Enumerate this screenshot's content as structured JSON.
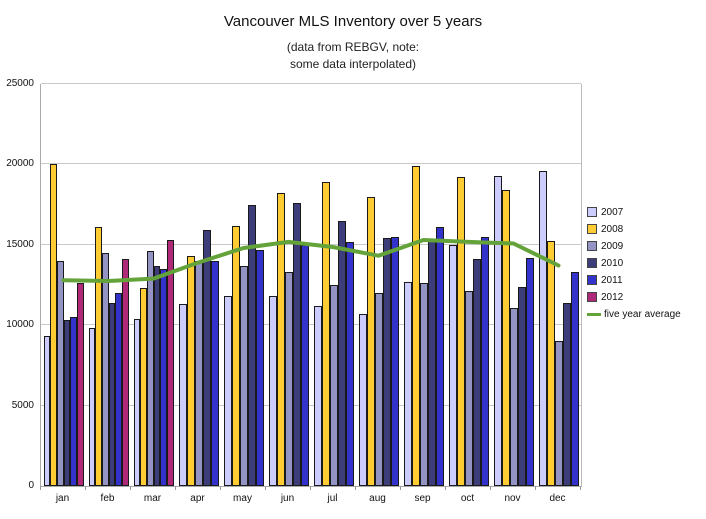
{
  "title": "Vancouver MLS Inventory over 5 years",
  "subtitle_line1": "(data from REBGV, note:",
  "subtitle_line2": "some data interpolated)",
  "colors": {
    "background": "#FFFFFF",
    "gridline": "#C9C9C9",
    "axis": "#AAAAAA",
    "bar_outline": "#1A1A1A",
    "text": "#111111"
  },
  "chart_data": {
    "type": "bar",
    "title": "Vancouver MLS Inventory over 5 years",
    "subtitle": "(data from REBGV, note: some data interpolated)",
    "xlabel": "",
    "ylabel": "",
    "ylim": [
      0,
      25000
    ],
    "yticks": [
      0,
      5000,
      10000,
      15000,
      20000,
      25000
    ],
    "grid": "horizontal",
    "legend_position": "right",
    "categories": [
      "jan",
      "feb",
      "mar",
      "apr",
      "may",
      "jun",
      "jul",
      "aug",
      "sep",
      "oct",
      "nov",
      "dec"
    ],
    "series": [
      {
        "name": "2007",
        "color": "#CCCCFF",
        "values": [
          9300,
          9800,
          10400,
          11300,
          11800,
          11800,
          11200,
          10700,
          12700,
          15000,
          19300,
          19600
        ]
      },
      {
        "name": "2008",
        "color": "#FFCC33",
        "values": [
          20000,
          16100,
          12300,
          14300,
          16200,
          18200,
          18900,
          18000,
          19900,
          19200,
          18400,
          15250
        ]
      },
      {
        "name": "2009",
        "color": "#9494C4",
        "values": [
          14000,
          14500,
          14600,
          14000,
          13700,
          13300,
          12500,
          12000,
          12600,
          12100,
          11100,
          9000
        ]
      },
      {
        "name": "2010",
        "color": "#3D3D7A",
        "values": [
          10300,
          11400,
          13700,
          15900,
          17500,
          17600,
          16500,
          15400,
          15250,
          14100,
          12400,
          11400
        ]
      },
      {
        "name": "2011",
        "color": "#3333CC",
        "values": [
          10500,
          12000,
          13500,
          14000,
          14700,
          15000,
          15200,
          15500,
          16100,
          15500,
          14200,
          13300
        ]
      },
      {
        "name": "2012",
        "color": "#B02878",
        "values": [
          12600,
          14100,
          15300,
          null,
          null,
          null,
          null,
          null,
          null,
          null,
          null,
          null
        ]
      }
    ],
    "line_series": {
      "name": "five year average",
      "color": "#63A33A",
      "values": [
        12800,
        12750,
        12900,
        13900,
        14800,
        15180,
        14860,
        14320,
        15300,
        15180,
        15080,
        13710
      ]
    }
  }
}
